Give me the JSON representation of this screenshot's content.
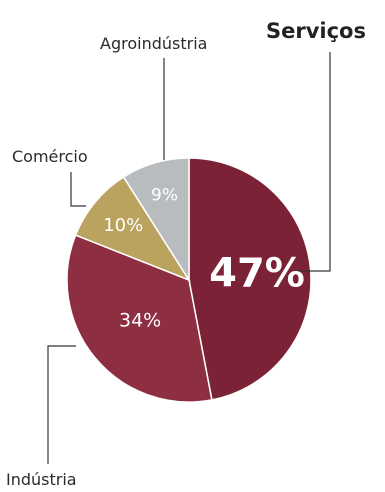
{
  "chart_data": {
    "type": "pie",
    "slices": [
      {
        "label": "Serviços",
        "value": 47,
        "value_label": "47%",
        "color": "#7b2236",
        "emphasized": true
      },
      {
        "label": "Indústria",
        "value": 34,
        "value_label": "34%",
        "color": "#8e2f41",
        "emphasized": false
      },
      {
        "label": "Comércio",
        "value": 10,
        "value_label": "10%",
        "color": "#b9a35e",
        "emphasized": false
      },
      {
        "label": "Agroindústria",
        "value": 9,
        "value_label": "9%",
        "color": "#b8bcbf",
        "emphasized": false
      }
    ],
    "title": "",
    "legend": "none",
    "start": "top",
    "direction": "clockwise"
  }
}
